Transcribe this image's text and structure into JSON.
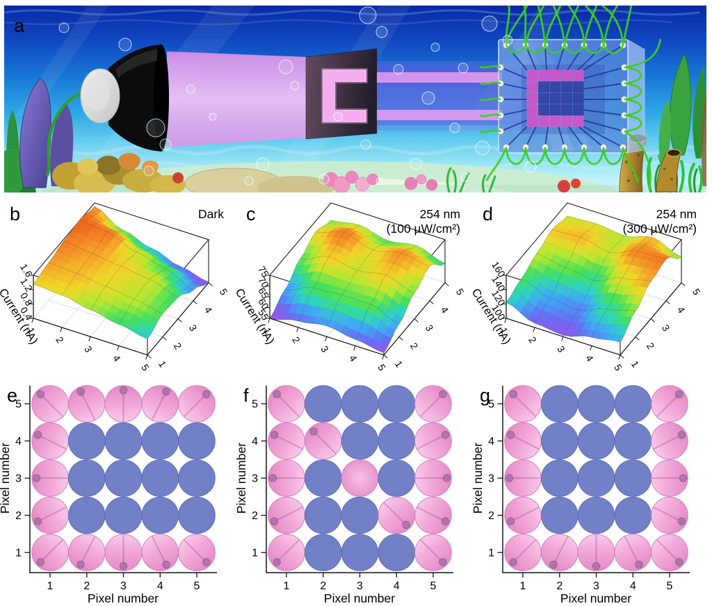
{
  "figure": {
    "panels": {
      "a": {
        "label": "a"
      },
      "b": {
        "label": "b"
      },
      "c": {
        "label": "c"
      },
      "d": {
        "label": "d"
      },
      "e": {
        "label": "e"
      },
      "f": {
        "label": "f"
      },
      "g": {
        "label": "g"
      }
    },
    "colors": {
      "pixel_on_pink": "#f0a9d6",
      "pixel_off_blue": "#7280c7",
      "beam_pink": "#f0a6ee",
      "beam_violet": "#7d6fe0",
      "wire_green": "#3ccf1e",
      "chip_blue": "#6ea3dd",
      "mask_dark": "#3a2a38",
      "flashlight_black": "#0c0c0c",
      "surface_colormap": [
        [
          0,
          "#9a55e8"
        ],
        [
          0.13,
          "#6a6cf2"
        ],
        [
          0.27,
          "#3fa8f5"
        ],
        [
          0.4,
          "#2fd4c0"
        ],
        [
          0.52,
          "#44e05c"
        ],
        [
          0.66,
          "#b8e832"
        ],
        [
          0.78,
          "#f2d629"
        ],
        [
          0.89,
          "#f59a28"
        ],
        [
          1,
          "#ef6a1d"
        ]
      ]
    }
  },
  "chart_data": [
    {
      "panel": "b",
      "type": "surface3d",
      "annotation": [
        "Dark"
      ],
      "zlabel": "Current (nA)",
      "z_ticks": [
        "0.4",
        "0.8",
        "1.2",
        "1.6"
      ],
      "zlim": [
        0.4,
        1.6
      ],
      "x_ticks": [
        "1",
        "2",
        "3",
        "4",
        "5"
      ],
      "y_ticks": [
        "1",
        "2",
        "3",
        "4",
        "5"
      ],
      "values_axes": "rows: x=1..5 (front-left axis), cols: y=1..5 (right axis)",
      "values": [
        [
          1.35,
          1.45,
          1.55,
          1.62,
          1.5
        ],
        [
          1.3,
          1.4,
          1.45,
          1.55,
          1.1
        ],
        [
          1.15,
          1.3,
          1.35,
          1.25,
          0.85
        ],
        [
          1.0,
          1.2,
          1.25,
          1.05,
          0.6
        ],
        [
          0.85,
          1.05,
          1.0,
          0.7,
          0.42
        ]
      ]
    },
    {
      "panel": "c",
      "type": "surface3d",
      "annotation": [
        "254 nm",
        "(100 µW/cm²)"
      ],
      "zlabel": "Current (nA)",
      "z_ticks": [
        "55",
        "60",
        "65",
        "70",
        "75"
      ],
      "zlim": [
        55,
        75
      ],
      "x_ticks": [
        "1",
        "2",
        "3",
        "4",
        "5"
      ],
      "y_ticks": [
        "1",
        "2",
        "3",
        "4",
        "5"
      ],
      "values_axes": "rows: x=1..5 (front-left axis), cols: y=1..5 (right axis)",
      "values": [
        [
          55,
          60,
          66,
          70,
          67
        ],
        [
          58,
          65,
          71,
          74,
          69
        ],
        [
          60,
          66,
          69,
          70,
          66
        ],
        [
          58,
          66,
          71,
          73,
          68
        ],
        [
          56,
          61,
          67,
          71,
          64
        ]
      ]
    },
    {
      "panel": "d",
      "type": "surface3d",
      "annotation": [
        "254 nm",
        "(300 µW/cm²)"
      ],
      "zlabel": "Current (nA)",
      "z_ticks": [
        "100",
        "120",
        "140",
        "160"
      ],
      "zlim": [
        100,
        160
      ],
      "x_ticks": [
        "1",
        "2",
        "3",
        "4",
        "5"
      ],
      "y_ticks": [
        "1",
        "2",
        "3",
        "4",
        "5"
      ],
      "values_axes": "rows: x=1..5 (front-left axis), cols: y=1..5 (right axis)",
      "values": [
        [
          122,
          130,
          140,
          148,
          142
        ],
        [
          106,
          116,
          134,
          150,
          144
        ],
        [
          102,
          112,
          128,
          142,
          140
        ],
        [
          112,
          126,
          144,
          156,
          150
        ],
        [
          118,
          136,
          152,
          158,
          136
        ]
      ]
    },
    {
      "panel": "e",
      "type": "pixel_map",
      "xlabel": "Pixel number",
      "ylabel": "Pixel number",
      "x_ticks": [
        "1",
        "2",
        "3",
        "4",
        "5"
      ],
      "y_ticks_top_to_bottom": [
        "5",
        "4",
        "3",
        "2",
        "1"
      ],
      "depicts_letter": "C",
      "on_matrix_rows_top_to_bottom": [
        [
          1,
          1,
          1,
          1,
          1
        ],
        [
          1,
          0,
          0,
          0,
          0
        ],
        [
          1,
          0,
          0,
          0,
          0
        ],
        [
          1,
          0,
          0,
          0,
          0
        ],
        [
          1,
          1,
          1,
          1,
          1
        ]
      ]
    },
    {
      "panel": "f",
      "type": "pixel_map",
      "xlabel": "Pixel number",
      "ylabel": "Pixel number",
      "x_ticks": [
        "1",
        "2",
        "3",
        "4",
        "5"
      ],
      "y_ticks_top_to_bottom": [
        "5",
        "4",
        "3",
        "2",
        "1"
      ],
      "depicts_letter": "N",
      "on_matrix_rows_top_to_bottom": [
        [
          1,
          0,
          0,
          0,
          1
        ],
        [
          1,
          1,
          0,
          0,
          1
        ],
        [
          1,
          0,
          1,
          0,
          1
        ],
        [
          1,
          0,
          0,
          1,
          1
        ],
        [
          1,
          0,
          0,
          0,
          1
        ]
      ]
    },
    {
      "panel": "g",
      "type": "pixel_map",
      "xlabel": "Pixel number",
      "ylabel": "Pixel number",
      "x_ticks": [
        "1",
        "2",
        "3",
        "4",
        "5"
      ],
      "y_ticks_top_to_bottom": [
        "5",
        "4",
        "3",
        "2",
        "1"
      ],
      "depicts_letter": "U",
      "on_matrix_rows_top_to_bottom": [
        [
          1,
          0,
          0,
          0,
          1
        ],
        [
          1,
          0,
          0,
          0,
          1
        ],
        [
          1,
          0,
          0,
          0,
          1
        ],
        [
          1,
          0,
          0,
          0,
          1
        ],
        [
          1,
          1,
          1,
          1,
          1
        ]
      ]
    }
  ]
}
